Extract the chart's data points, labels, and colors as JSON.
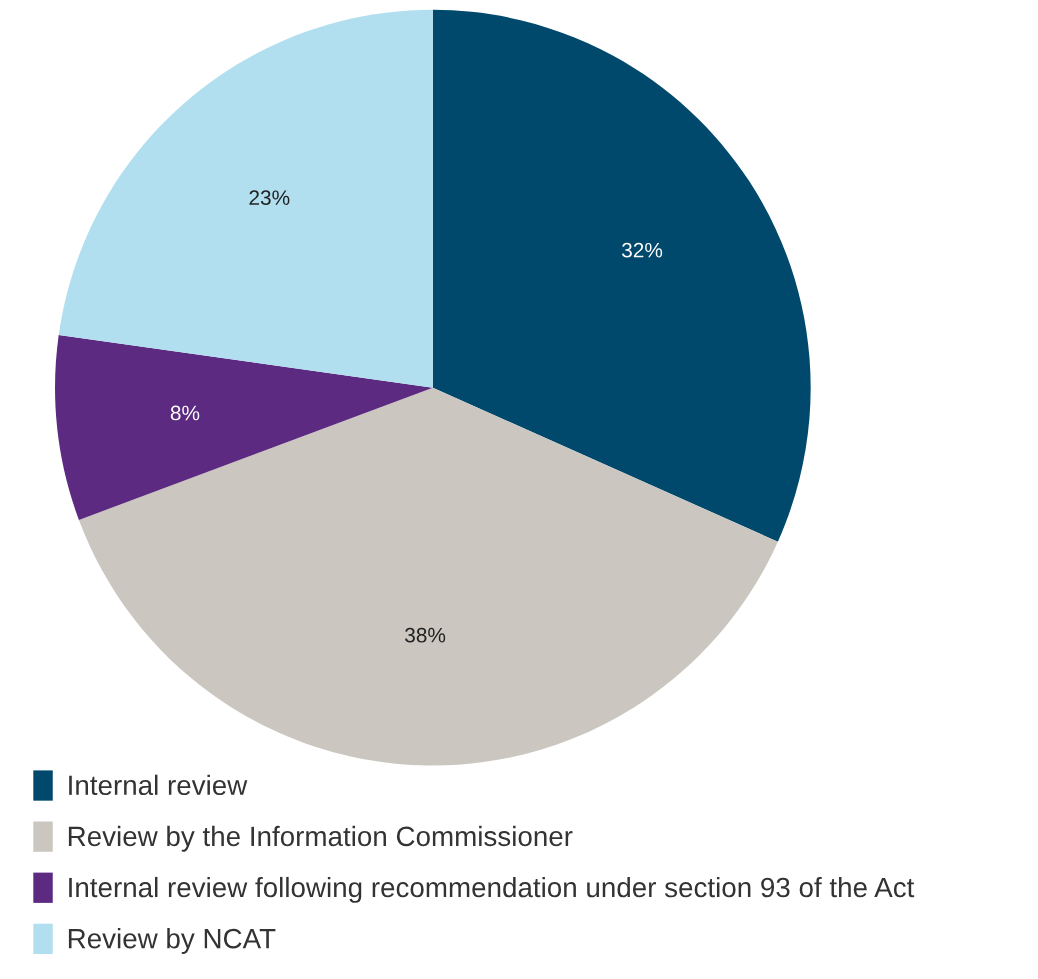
{
  "chart_data": {
    "type": "pie",
    "categories": [
      "Internal review",
      "Review by the Information Commissioner",
      "Internal review following recommendation under section 93 of the Act",
      "Review by NCAT"
    ],
    "values": [
      32,
      38,
      8,
      23
    ],
    "value_labels": [
      "32%",
      "38%",
      "8%",
      "23%"
    ],
    "colors": [
      "#00496d",
      "#cbc7c0",
      "#5c2a80",
      "#b1dfef"
    ],
    "legend": "bottom"
  }
}
